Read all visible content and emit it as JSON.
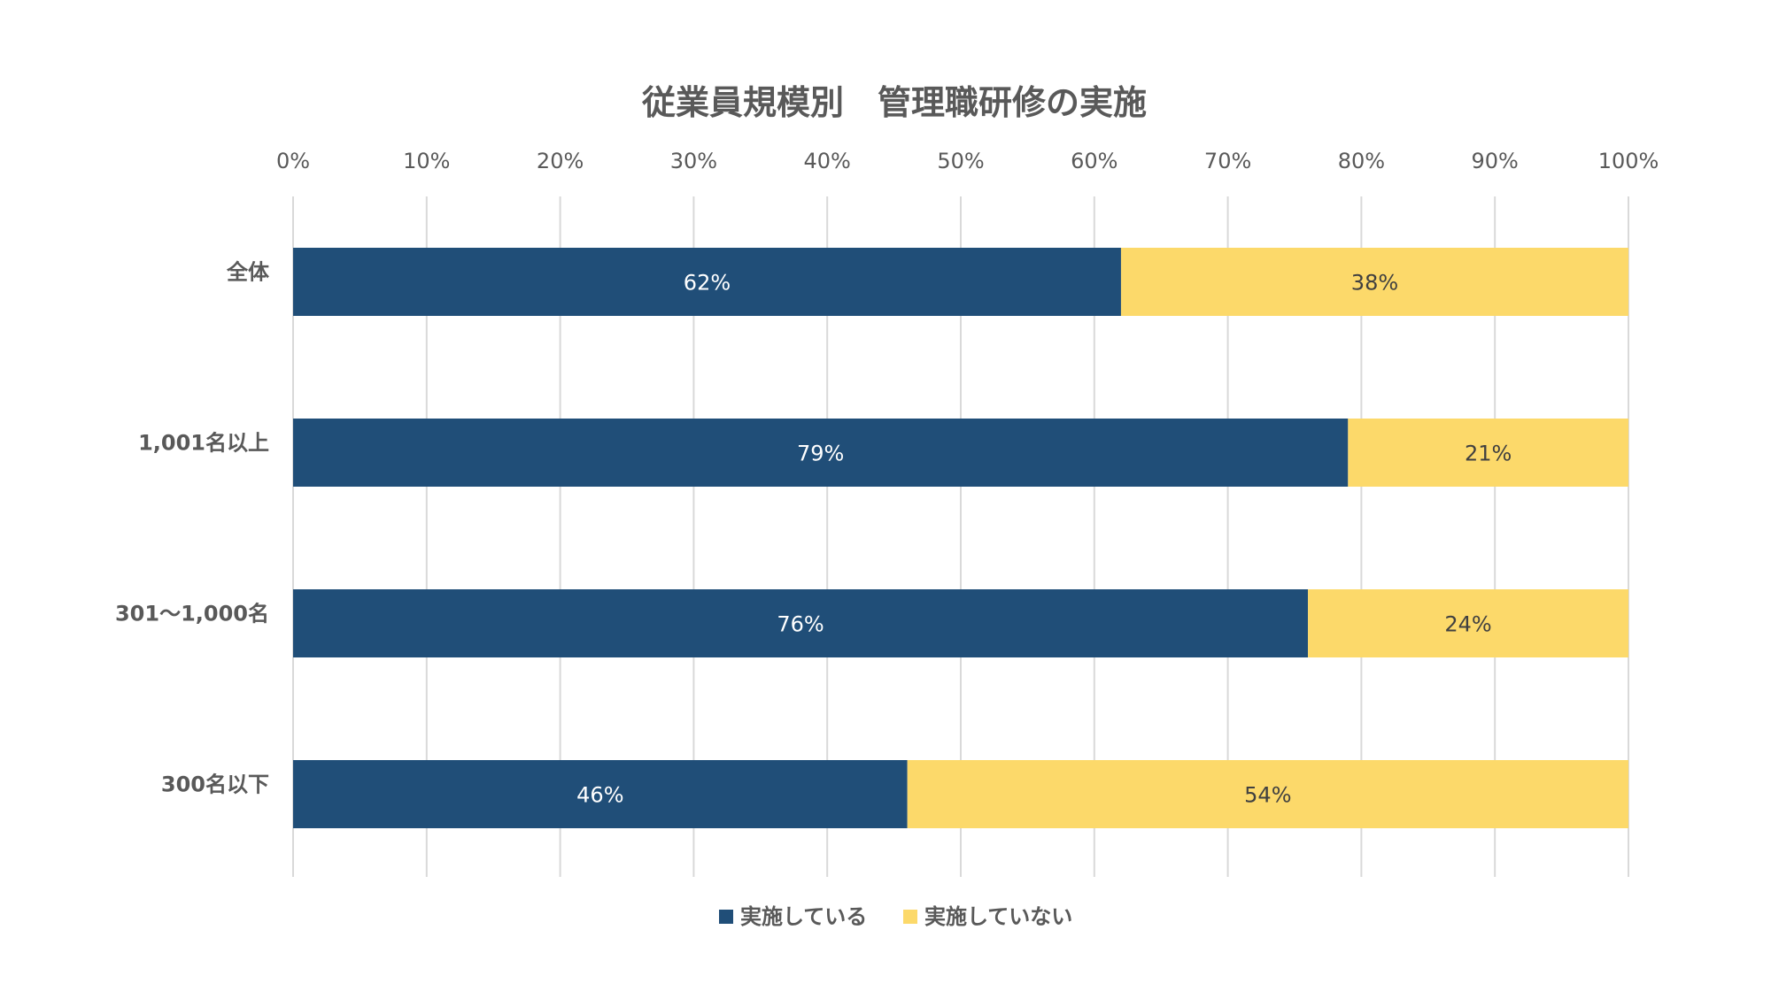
{
  "chart_data": {
    "type": "bar",
    "orientation": "horizontal",
    "stacked": true,
    "title": "従業員規模別　管理職研修の実施",
    "categories": [
      "全体",
      "1,001名以上",
      "301〜1,000名",
      "300名以下"
    ],
    "series": [
      {
        "name": "実施している",
        "values": [
          62,
          79,
          76,
          46
        ],
        "color": "#204e78"
      },
      {
        "name": "実施していない",
        "values": [
          38,
          21,
          24,
          54
        ],
        "color": "#fcd96a"
      }
    ],
    "data_labels": [
      [
        "62%",
        "79%",
        "76%",
        "46%"
      ],
      [
        "38%",
        "21%",
        "24%",
        "54%"
      ]
    ],
    "data_label_colors": [
      "#ffffff",
      "#404040"
    ],
    "x_ticks": [
      "0%",
      "10%",
      "20%",
      "30%",
      "40%",
      "50%",
      "60%",
      "70%",
      "80%",
      "90%",
      "100%"
    ],
    "xlim": [
      0,
      100
    ],
    "x_axis_position": "top",
    "grid": true,
    "legend": "bottom",
    "text_color": "#595959",
    "grid_color": "#d9d9d9"
  }
}
